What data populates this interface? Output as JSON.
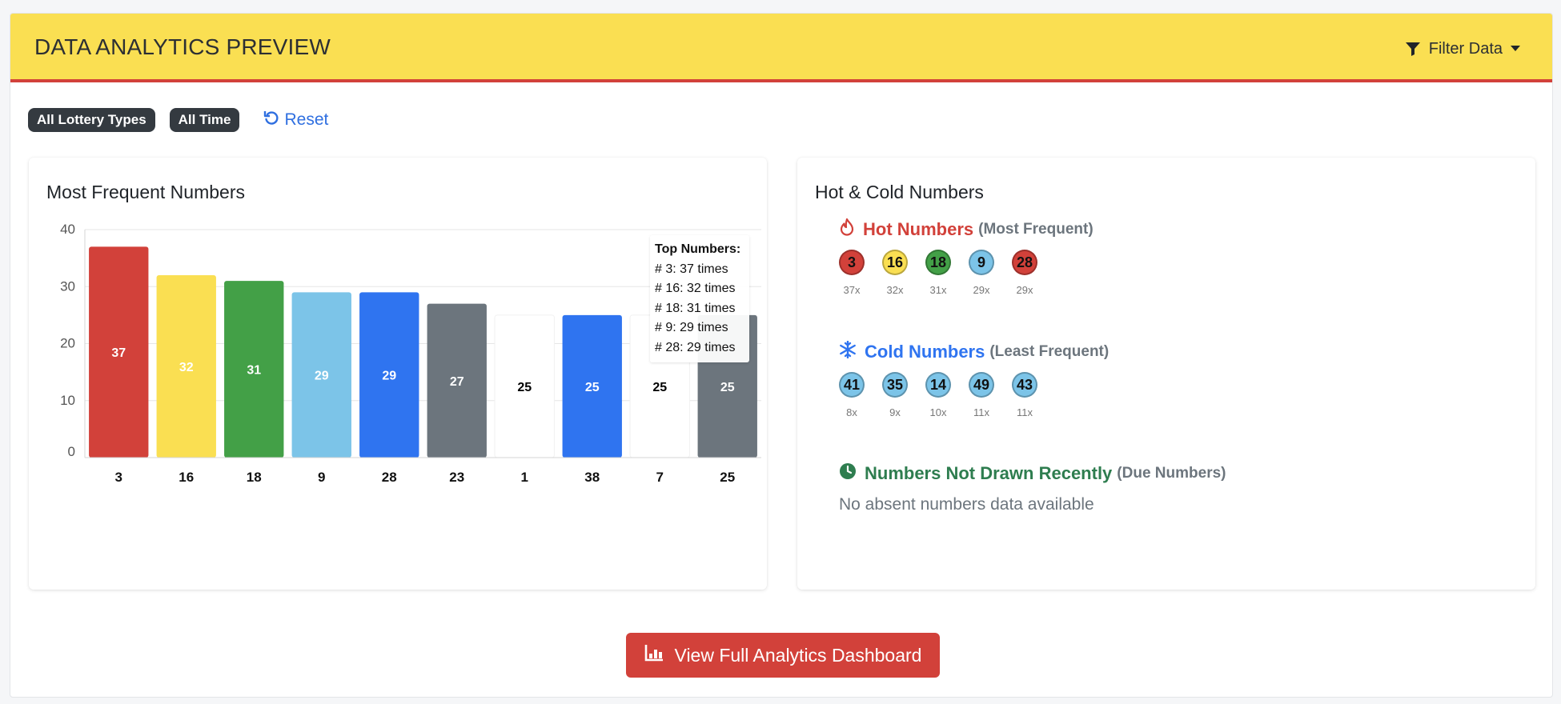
{
  "header": {
    "title": "DATA ANALYTICS PREVIEW",
    "filter_label": "Filter Data"
  },
  "filters": {
    "chips": [
      "All Lottery Types",
      "All Time"
    ],
    "reset_label": "Reset"
  },
  "frequent_card": {
    "title": "Most Frequent Numbers"
  },
  "chart_data": {
    "type": "bar",
    "categories": [
      "3",
      "16",
      "18",
      "9",
      "28",
      "23",
      "1",
      "38",
      "7",
      "25"
    ],
    "values": [
      37,
      32,
      31,
      29,
      29,
      27,
      25,
      25,
      25,
      25
    ],
    "colors": [
      "#d2413a",
      "#fadf52",
      "#43a047",
      "#7cc4e8",
      "#2f74f0",
      "#6c757d",
      "#ffffff",
      "#2f74f0",
      "#ffffff",
      "#6c757d"
    ],
    "label_colors": [
      "#ffffff",
      "#ffffff",
      "#ffffff",
      "#ffffff",
      "#ffffff",
      "#ffffff",
      "#000000",
      "#ffffff",
      "#000000",
      "#ffffff"
    ],
    "ylim": [
      0,
      40
    ],
    "yticks": [
      "0",
      "10",
      "20",
      "30",
      "40"
    ],
    "grid": true,
    "title": "",
    "xlabel": "",
    "ylabel": ""
  },
  "tooltip": {
    "title": "Top Numbers:",
    "lines": [
      "# 3: 37 times",
      "# 16: 32 times",
      "# 18: 31 times",
      "# 9: 29 times",
      "# 28: 29 times"
    ]
  },
  "hotcold_card": {
    "title": "Hot & Cold Numbers",
    "hot": {
      "label": "Hot Numbers",
      "sub": "(Most Frequent)",
      "color": "#d2413a",
      "icon": "fire-icon",
      "balls": [
        {
          "number": "3",
          "count": "37x",
          "color": "#d2413a"
        },
        {
          "number": "16",
          "count": "32x",
          "color": "#fadf52"
        },
        {
          "number": "18",
          "count": "31x",
          "color": "#43a047"
        },
        {
          "number": "9",
          "count": "29x",
          "color": "#7cc4e8"
        },
        {
          "number": "28",
          "count": "29x",
          "color": "#d2413a"
        }
      ]
    },
    "cold": {
      "label": "Cold Numbers",
      "sub": "(Least Frequent)",
      "color": "#2f74f0",
      "icon": "snowflake-icon",
      "balls": [
        {
          "number": "41",
          "count": "8x",
          "color": "#7cc4e8"
        },
        {
          "number": "35",
          "count": "9x",
          "color": "#7cc4e8"
        },
        {
          "number": "14",
          "count": "10x",
          "color": "#7cc4e8"
        },
        {
          "number": "49",
          "count": "11x",
          "color": "#7cc4e8"
        },
        {
          "number": "43",
          "count": "11x",
          "color": "#7cc4e8"
        }
      ]
    },
    "due": {
      "label": "Numbers Not Drawn Recently",
      "sub": "(Due Numbers)",
      "color": "#2e7d4f",
      "icon": "clock-icon",
      "message": "No absent numbers data available"
    }
  },
  "cta": {
    "label": "View Full Analytics Dashboard",
    "icon": "chart-icon"
  }
}
